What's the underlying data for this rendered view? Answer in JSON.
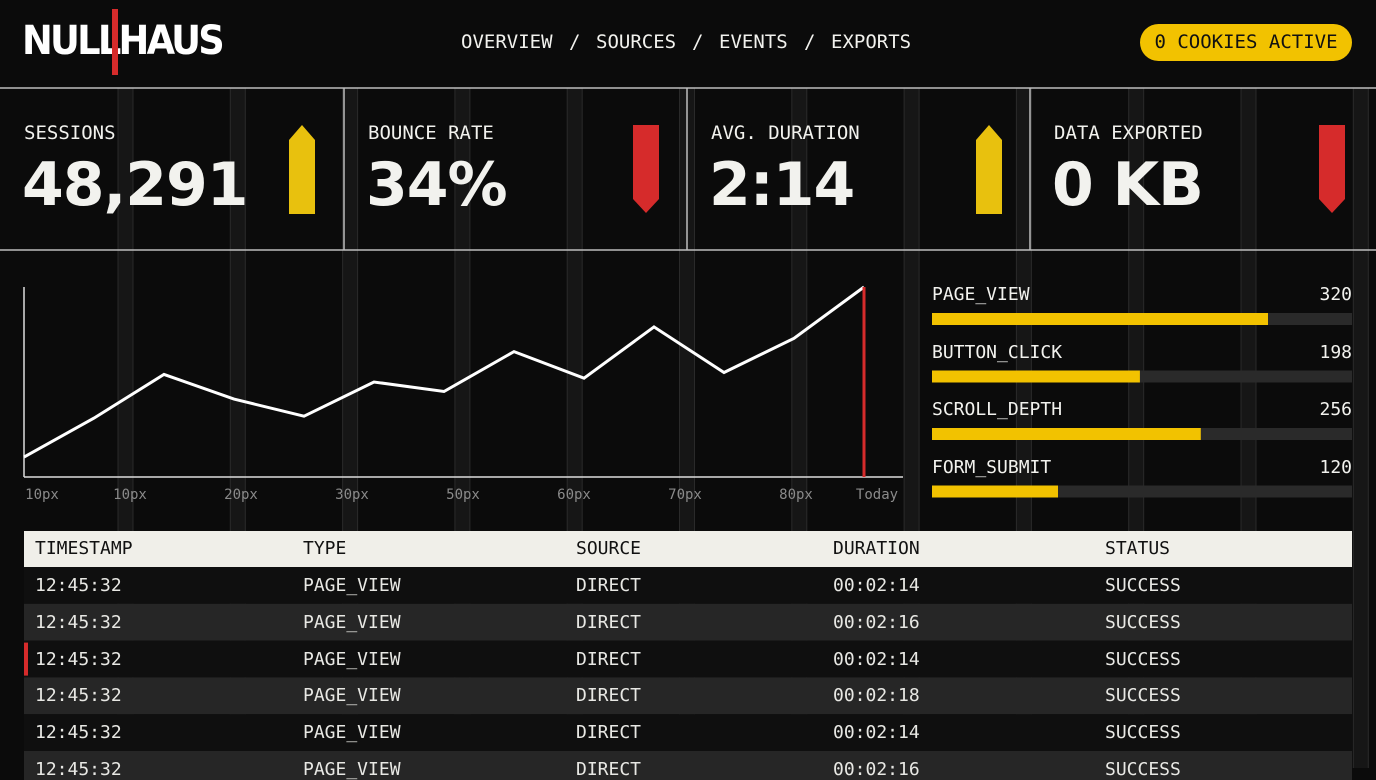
{
  "header": {
    "logo": "NULLHAUS",
    "nav": [
      "OVERVIEW",
      "SOURCES",
      "EVENTS",
      "EXPORTS"
    ],
    "nav_separator": "/",
    "badge": "0 COOKIES ACTIVE"
  },
  "kpis": [
    {
      "label": "SESSIONS",
      "value": "48,291",
      "trend": "up",
      "color": "#e8c10e"
    },
    {
      "label": "BOUNCE RATE",
      "value": "34%",
      "trend": "down",
      "color": "#d62b2b"
    },
    {
      "label": "AVG. DURATION",
      "value": "2:14",
      "trend": "up",
      "color": "#e8c10e"
    },
    {
      "label": "DATA EXPORTED",
      "value": "0 KB",
      "trend": "down",
      "color": "#d62b2b"
    }
  ],
  "line_chart": {
    "type": "line",
    "x_labels": [
      "10px",
      "10px",
      "20px",
      "30px",
      "50px",
      "60px",
      "70px",
      "80px",
      "Today"
    ],
    "values": [
      10.5,
      31,
      54,
      41,
      32,
      50,
      45,
      66,
      52,
      79,
      55,
      73,
      100
    ],
    "ylim": [
      0,
      100
    ],
    "color": "#ffffff",
    "marker_color": "#d62b2b"
  },
  "events": {
    "type": "bar",
    "categories": [
      "PAGE_VIEW",
      "BUTTON_CLICK",
      "SCROLL_DEPTH",
      "FORM_SUBMIT"
    ],
    "values": [
      320,
      198,
      256,
      120
    ],
    "xlim": [
      0,
      400
    ],
    "color": "#f2c200"
  },
  "table": {
    "columns": [
      "TIMESTAMP",
      "TYPE",
      "SOURCE",
      "DURATION",
      "STATUS"
    ],
    "rows": [
      [
        "12:45:32",
        "PAGE_VIEW",
        "DIRECT",
        "00:02:14",
        "SUCCESS"
      ],
      [
        "12:45:32",
        "PAGE_VIEW",
        "DIRECT",
        "00:02:16",
        "SUCCESS"
      ],
      [
        "12:45:32",
        "PAGE_VIEW",
        "DIRECT",
        "00:02:14",
        "SUCCESS"
      ],
      [
        "12:45:32",
        "PAGE_VIEW",
        "DIRECT",
        "00:02:18",
        "SUCCESS"
      ],
      [
        "12:45:32",
        "PAGE_VIEW",
        "DIRECT",
        "00:02:14",
        "SUCCESS"
      ],
      [
        "12:45:32",
        "PAGE_VIEW",
        "DIRECT",
        "00:02:16",
        "SUCCESS"
      ]
    ]
  }
}
